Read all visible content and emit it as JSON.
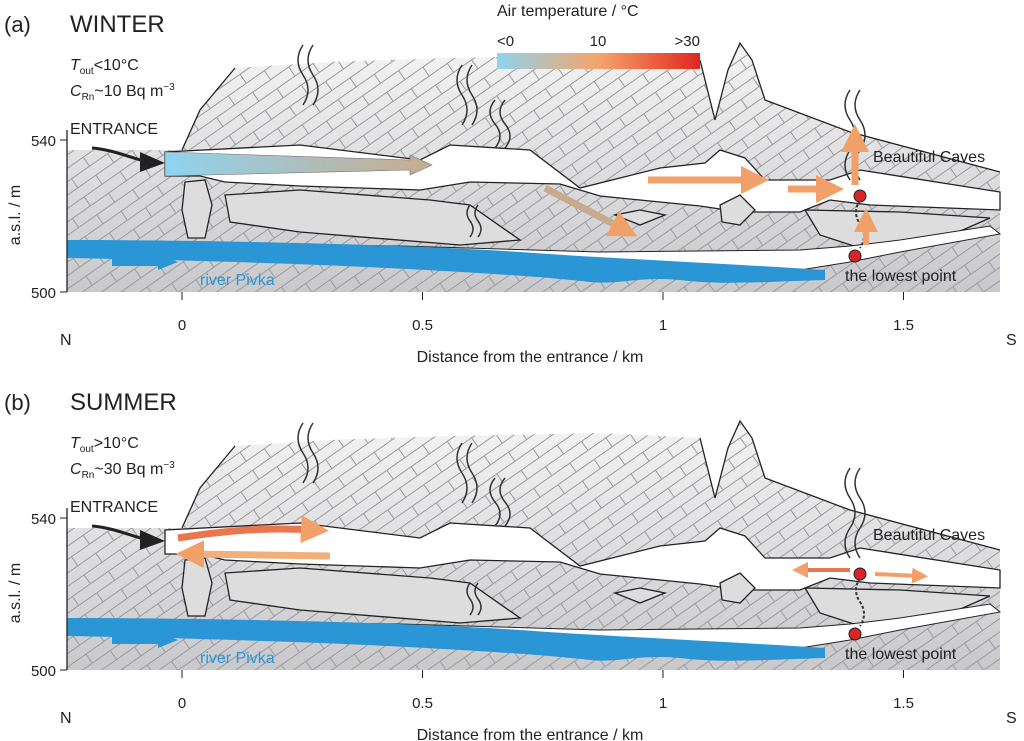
{
  "colorbar": {
    "title": "Air temperature / °C",
    "ticks": [
      "<0",
      "10",
      ">30"
    ]
  },
  "panels": [
    {
      "label": "(a)",
      "season": "WINTER",
      "t_out": {
        "symbol": "T",
        "sub": "out",
        "text": "<10°C"
      },
      "c_rn": {
        "symbol": "C",
        "sub": "Rn",
        "text": "~10 Bq m",
        "sup": "−3"
      },
      "entrance": "ENTRANCE",
      "beautiful_caves": "Beautiful Caves",
      "lowest_point": "the lowest point",
      "river": "river Pivka",
      "y_axis_label": "a.s.l. / m",
      "yticks": [
        540,
        500
      ],
      "xticks": [
        0,
        0.5,
        1,
        1.5
      ],
      "x_axis_label": "Distance from the entrance / km",
      "north": "N",
      "south": "S"
    },
    {
      "label": "(b)",
      "season": "SUMMER",
      "t_out": {
        "symbol": "T",
        "sub": "out",
        "text": ">10°C"
      },
      "c_rn": {
        "symbol": "C",
        "sub": "Rn",
        "text": "~30 Bq m",
        "sup": "−3"
      },
      "entrance": "ENTRANCE",
      "beautiful_caves": "Beautiful Caves",
      "lowest_point": "the lowest point",
      "river": "river Pivka",
      "y_axis_label": "a.s.l. / m",
      "yticks": [
        540,
        500
      ],
      "xticks": [
        0,
        0.5,
        1,
        1.5
      ],
      "x_axis_label": "Distance from the entrance / km",
      "north": "N",
      "south": "S"
    }
  ]
}
